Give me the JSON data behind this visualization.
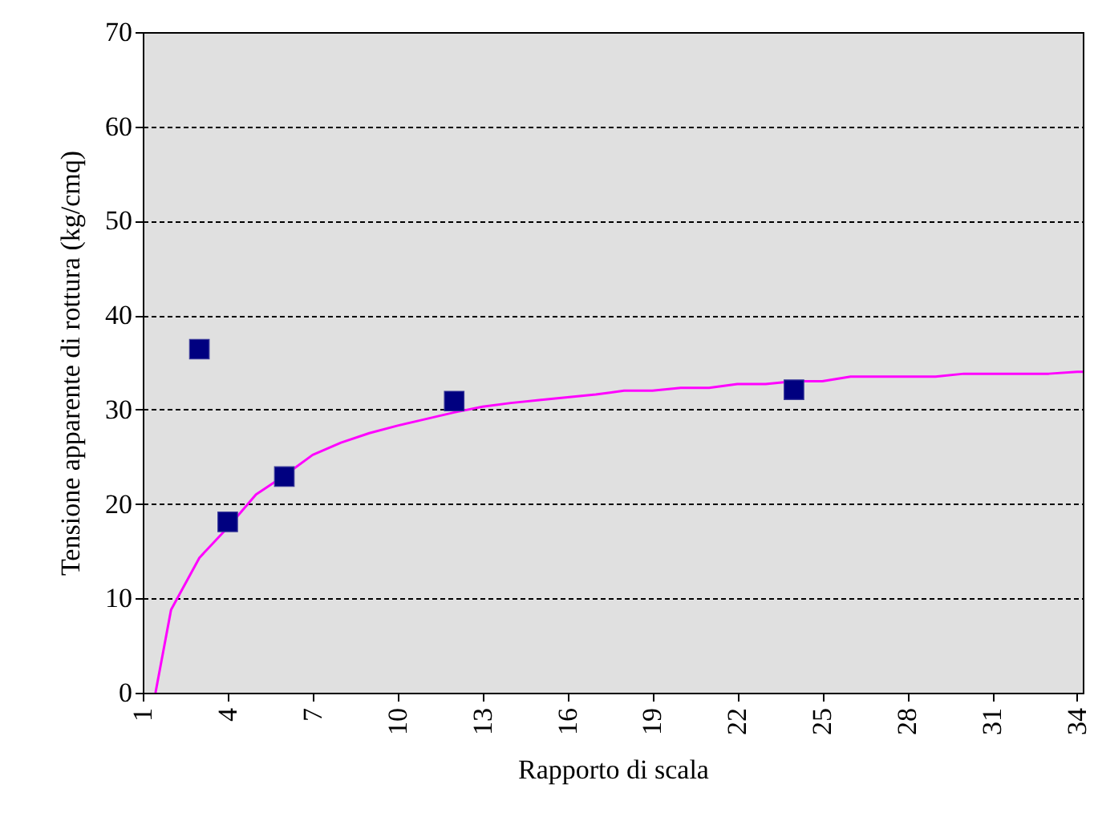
{
  "chart_data": {
    "type": "scatter",
    "xlabel": "Rapporto di scala",
    "ylabel": "Tensione apparente di rottura (kg/cmq)",
    "xlim": [
      1,
      34.2
    ],
    "xticks": [
      1,
      4,
      7,
      10,
      13,
      16,
      19,
      22,
      25,
      28,
      31,
      34
    ],
    "ylim": [
      0,
      70
    ],
    "yticks": [
      0,
      10,
      20,
      30,
      40,
      50,
      60,
      70
    ],
    "grid": "y",
    "series": [
      {
        "type": "line",
        "color": "#ff00ff",
        "line_style": "solid",
        "x": [
          1.45,
          2,
          3,
          4,
          5,
          6,
          7,
          8,
          9,
          10,
          11,
          12,
          13,
          14,
          15,
          16,
          17,
          18,
          19,
          20,
          21,
          22,
          23,
          24,
          25,
          26,
          27,
          28,
          29,
          30,
          31,
          32,
          33,
          34,
          34.2
        ],
        "values": [
          0,
          8.8,
          14.3,
          17.5,
          21,
          23,
          25.2,
          26.5,
          27.5,
          28.3,
          29,
          29.7,
          30.3,
          30.7,
          31,
          31.3,
          31.6,
          32,
          32,
          32.3,
          32.3,
          32.7,
          32.7,
          33,
          33,
          33.5,
          33.5,
          33.5,
          33.5,
          33.8,
          33.8,
          33.8,
          33.8,
          34,
          34
        ]
      },
      {
        "color": "#000080",
        "marker": "square",
        "x": [
          3,
          4,
          6,
          12,
          24
        ],
        "values": [
          36.4,
          18.1,
          22.9,
          30.9,
          32.1
        ]
      }
    ]
  }
}
